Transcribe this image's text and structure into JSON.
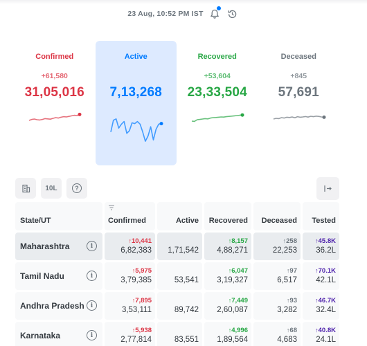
{
  "header": {
    "timestamp": "23 Aug, 10:52 PM IST",
    "bell_icon": "bell-icon",
    "history_icon": "history-icon",
    "accent": "#007bff"
  },
  "level": [
    {
      "title": "Confirmed",
      "delta": "+61,580",
      "total": "31,05,016",
      "color": "#dc3545",
      "trend": [
        0.35,
        0.42,
        0.45,
        0.4,
        0.38,
        0.42,
        0.48,
        0.46,
        0.44,
        0.5,
        0.55,
        0.52,
        0.58,
        0.62,
        0.6,
        0.64,
        0.68,
        0.72,
        0.7,
        0.78
      ]
    },
    {
      "title": "Active",
      "delta": "",
      "total": "7,13,268",
      "color": "#007bff",
      "trend": [
        0.4,
        0.85,
        0.9,
        0.55,
        0.7,
        0.8,
        0.35,
        0.45,
        0.75,
        0.72,
        0.8,
        0.7,
        0.4,
        0.05,
        0.25,
        0.6,
        0.1,
        0.5,
        0.7,
        0.72
      ]
    },
    {
      "title": "Recovered",
      "delta": "+53,604",
      "total": "23,33,504",
      "color": "#28a745",
      "trend": [
        0.3,
        0.28,
        0.4,
        0.42,
        0.45,
        0.48,
        0.46,
        0.52,
        0.55,
        0.56,
        0.58,
        0.6,
        0.59,
        0.62,
        0.64,
        0.66,
        0.68,
        0.7,
        0.72,
        0.74
      ]
    },
    {
      "title": "Deceased",
      "delta": "+845",
      "total": "57,691",
      "color": "#6c757d",
      "trend": [
        0.45,
        0.5,
        0.48,
        0.55,
        0.52,
        0.58,
        0.56,
        0.6,
        0.54,
        0.62,
        0.58,
        0.6,
        0.63,
        0.59,
        0.65,
        0.62,
        0.66,
        0.64,
        0.6,
        0.58
      ]
    }
  ],
  "toolbar": {
    "map_icon": "building-icon",
    "per_10l_label": "10L",
    "help_label": "?",
    "expand_icon": "expand-table-icon"
  },
  "table": {
    "headers": [
      "State/UT",
      "Confirmed",
      "Active",
      "Recovered",
      "Deceased",
      "Tested"
    ],
    "sort_icon": "sort-icon",
    "rows": [
      {
        "state": "Maharashtra",
        "confirmed_delta": "10,441",
        "confirmed": "6,82,383",
        "active": "1,71,542",
        "recovered_delta": "8,157",
        "recovered": "4,88,271",
        "deceased_delta": "258",
        "deceased": "22,253",
        "tested_delta": "45.8K",
        "tested": "36.2L",
        "highlighted": true
      },
      {
        "state": "Tamil Nadu",
        "confirmed_delta": "5,975",
        "confirmed": "3,79,385",
        "active": "53,541",
        "recovered_delta": "6,047",
        "recovered": "3,19,327",
        "deceased_delta": "97",
        "deceased": "6,517",
        "tested_delta": "70.1K",
        "tested": "42.1L",
        "highlighted": false
      },
      {
        "state": "Andhra Pradesh",
        "confirmed_delta": "7,895",
        "confirmed": "3,53,111",
        "active": "89,742",
        "recovered_delta": "7,449",
        "recovered": "2,60,087",
        "deceased_delta": "93",
        "deceased": "3,282",
        "tested_delta": "46.7K",
        "tested": "32.4L",
        "highlighted": false
      },
      {
        "state": "Karnataka",
        "confirmed_delta": "5,938",
        "confirmed": "2,77,814",
        "active": "83,551",
        "recovered_delta": "4,996",
        "recovered": "1,89,564",
        "deceased_delta": "68",
        "deceased": "4,683",
        "tested_delta": "40.8K",
        "tested": "24.1L",
        "highlighted": false
      }
    ],
    "colors": {
      "confirmed": "#dc3545",
      "recovered": "#28a745",
      "deceased": "#6c757d",
      "tested": "#4b1eaa"
    }
  }
}
